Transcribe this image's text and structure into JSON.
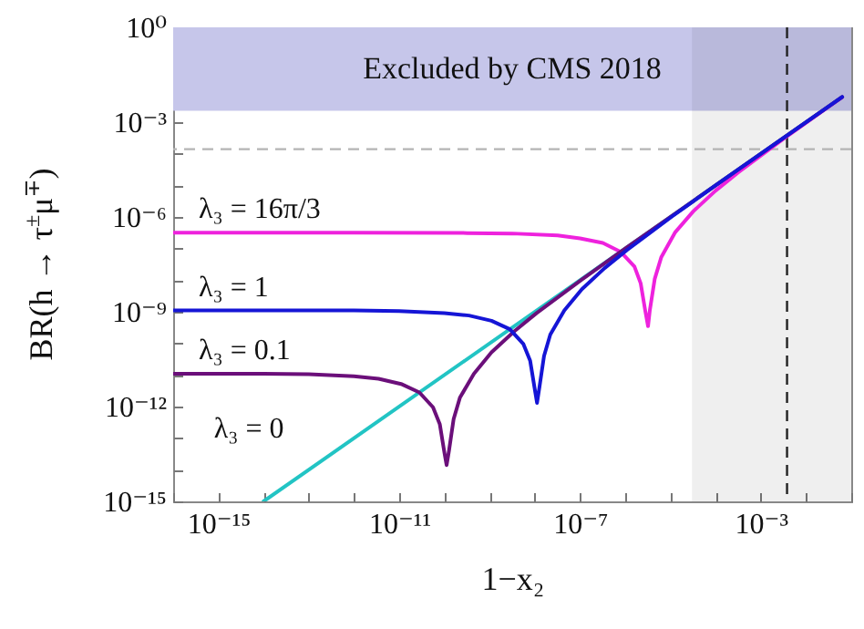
{
  "chart_data": {
    "type": "line",
    "xlabel": "1−x₂",
    "ylabel": "BR(h → τ$^{±}$μ$^{∓}$)",
    "log": "xy",
    "xlim": [
      1e-16,
      0.1
    ],
    "ylim": [
      1e-15,
      1
    ],
    "xticks": [
      {
        "value": 1e-16,
        "label": null
      },
      {
        "value": 1e-15,
        "label": "10⁻¹⁵"
      },
      {
        "value": 1e-14,
        "label": null
      },
      {
        "value": 1e-13,
        "label": null
      },
      {
        "value": 1e-12,
        "label": null
      },
      {
        "value": 1e-11,
        "label": "10⁻¹¹"
      },
      {
        "value": 1e-10,
        "label": null
      },
      {
        "value": 1e-09,
        "label": null
      },
      {
        "value": 1e-08,
        "label": null
      },
      {
        "value": 1e-07,
        "label": "10⁻⁷"
      },
      {
        "value": 1e-06,
        "label": null
      },
      {
        "value": 1e-05,
        "label": null
      },
      {
        "value": 0.0001,
        "label": null
      },
      {
        "value": 0.001,
        "label": "10⁻³"
      },
      {
        "value": 0.01,
        "label": null
      },
      {
        "value": 0.1,
        "label": null
      }
    ],
    "yticks": [
      {
        "value": 1e-15,
        "label": "10⁻¹⁵"
      },
      {
        "value": 1e-14,
        "label": null
      },
      {
        "value": 1e-13,
        "label": null
      },
      {
        "value": 1e-12,
        "label": "10⁻¹²"
      },
      {
        "value": 1e-11,
        "label": null
      },
      {
        "value": 1e-10,
        "label": null
      },
      {
        "value": 1e-09,
        "label": "10⁻⁹"
      },
      {
        "value": 1e-08,
        "label": null
      },
      {
        "value": 1e-07,
        "label": null
      },
      {
        "value": 1e-06,
        "label": "10⁻⁶"
      },
      {
        "value": 1e-05,
        "label": null
      },
      {
        "value": 0.0001,
        "label": null
      },
      {
        "value": 0.001,
        "label": "10⁻³"
      },
      {
        "value": 0.01,
        "label": null
      },
      {
        "value": 0.1,
        "label": null
      },
      {
        "value": 1,
        "label": "10⁰"
      }
    ],
    "grid": false,
    "line_style": "solid",
    "bands": [
      {
        "axis": "y",
        "from": 0.0023,
        "to": 1,
        "label": "Excluded by CMS 2018",
        "color": "#c6c6ea"
      },
      {
        "axis": "x",
        "from": 3e-05,
        "to": 0.1,
        "color": "#efefef"
      }
    ],
    "ref_lines": [
      {
        "axis": "y",
        "value": 0.00014,
        "color": "#b4b4b4",
        "line_style": "dashed"
      },
      {
        "axis": "x",
        "value": 0.0038,
        "color": "#222222",
        "line_style": "dashed"
      }
    ],
    "series": [
      {
        "name": "λ₃ = 0",
        "color": "#22c4c4",
        "x": [
          1e-14,
          0.063
        ],
        "values": [
          1e-15,
          0.0063
        ]
      },
      {
        "name": "λ₃ = 16π/3",
        "color": "#ee22dd",
        "x": [
          1e-16,
          1e-12,
          3.2e-10,
          3.2e-09,
          3.2e-08,
          1e-07,
          3.2e-07,
          7.9e-07,
          1.6e-06,
          2.2e-06,
          2.8e-06,
          3.2e-06,
          3.5e-06,
          4.5e-06,
          6.3e-06,
          1.26e-05,
          3.2e-05,
          0.0001,
          0.00032,
          0.0032,
          0.032,
          0.063
        ],
        "values": [
          3.2e-07,
          3.2e-07,
          3.1e-07,
          3e-07,
          2.6e-07,
          2.1e-07,
          1.5e-07,
          7.9e-08,
          2.7e-08,
          7.9e-09,
          1e-09,
          3.5e-10,
          1.1e-09,
          1.1e-08,
          5.4e-08,
          3.2e-07,
          1.5e-06,
          6.8e-06,
          2.6e-05,
          0.0003,
          0.0031,
          0.0062
        ]
      },
      {
        "name": "λ₃ = 0.1",
        "color": "#6b0f7a",
        "x": [
          1e-16,
          1e-14,
          1e-13,
          1e-12,
          3.5e-12,
          1.1e-11,
          2.8e-11,
          5.6e-11,
          7.9e-11,
          1e-10,
          1.12e-10,
          1.26e-10,
          1.6e-10,
          2.2e-10,
          4.5e-10,
          1.1e-09,
          3.5e-09,
          1.1e-08,
          1.1e-07,
          1.1e-06,
          0.00011,
          0.063
        ],
        "values": [
          1.1e-11,
          1.1e-11,
          1.05e-11,
          9.1e-12,
          7.6e-12,
          5.2e-12,
          2.8e-12,
          9.5e-13,
          2.8e-13,
          3.5e-14,
          1.4e-14,
          3.9e-14,
          4e-13,
          1.9e-12,
          1.1e-11,
          5.2e-11,
          2.4e-10,
          9.1e-10,
          1.05e-08,
          1.1e-07,
          1.1e-05,
          0.0063
        ]
      },
      {
        "name": "λ₃ = 1",
        "color": "#1515d6",
        "x": [
          1e-16,
          1e-14,
          1e-12,
          1e-11,
          1e-10,
          3.5e-10,
          1.1e-09,
          2.8e-09,
          5.6e-09,
          7.9e-09,
          1e-08,
          1.12e-08,
          1.26e-08,
          1.6e-08,
          2.2e-08,
          4.5e-08,
          1.1e-07,
          3.5e-07,
          1.1e-06,
          1.1e-05,
          0.00011,
          0.011,
          0.063
        ],
        "values": [
          1.1e-09,
          1.1e-09,
          1.1e-09,
          1.05e-09,
          9.1e-10,
          7.6e-10,
          5.2e-10,
          2.8e-10,
          9.5e-11,
          2.8e-11,
          3.5e-12,
          1.3e-12,
          3.9e-12,
          4e-11,
          1.9e-10,
          1.1e-09,
          5.2e-09,
          2.4e-08,
          9.1e-08,
          1.05e-06,
          1.1e-05,
          0.0011,
          0.0063
        ]
      }
    ]
  }
}
